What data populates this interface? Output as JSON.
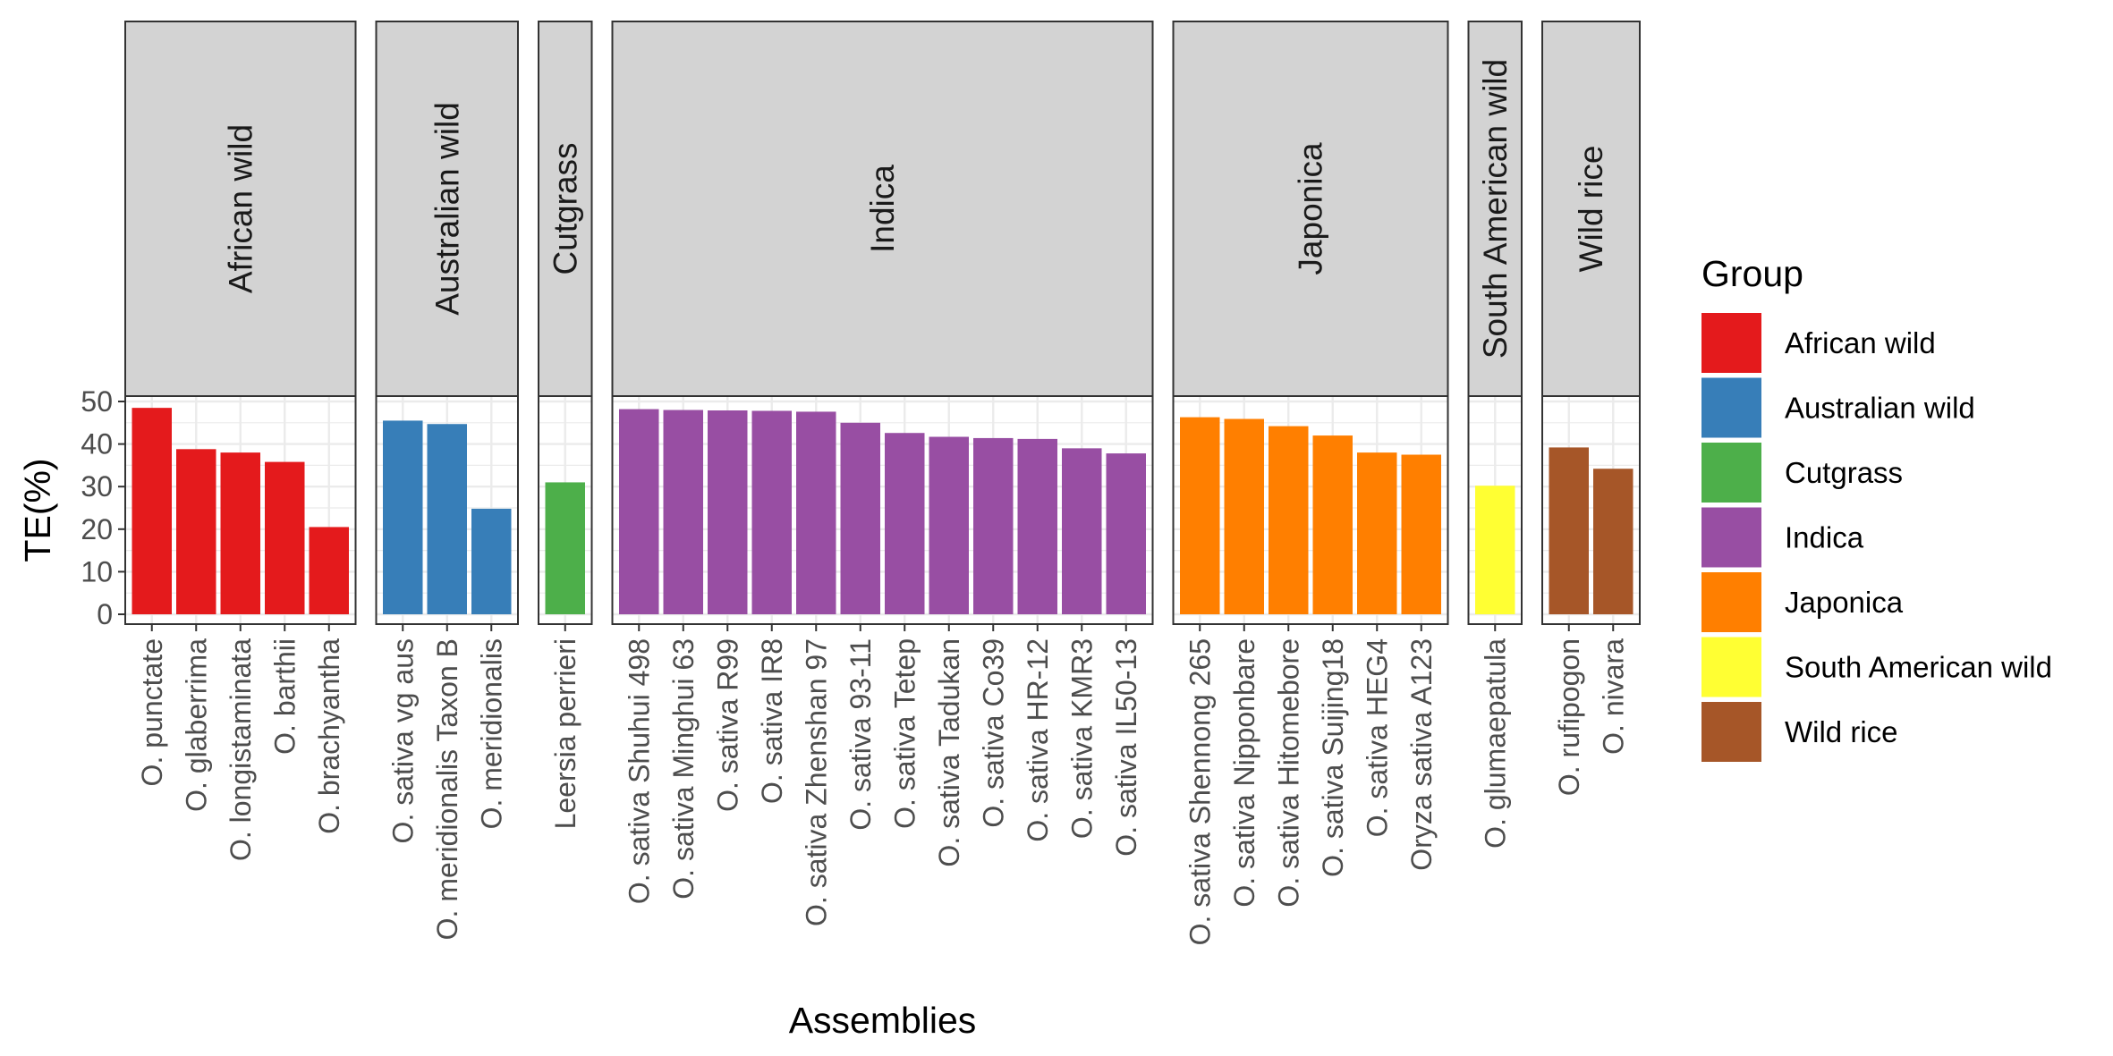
{
  "chart_data": {
    "type": "bar",
    "facet_by": "Group",
    "xlabel": "Assemblies",
    "ylabel": "TE(%)",
    "ylim": [
      0,
      50
    ],
    "y_ticks": [
      "0",
      "10",
      "20",
      "30",
      "40",
      "50"
    ],
    "grid": true,
    "legend_position": "right",
    "legend_title": "Group",
    "facets": [
      {
        "group": "African wild",
        "color": "#E41A1C",
        "categories": [
          "O. punctate",
          "O. glaberrima",
          "O. longistaminata",
          "O. barthii",
          "O. brachyantha"
        ],
        "values": [
          48.5,
          38.8,
          38.0,
          35.8,
          20.5
        ]
      },
      {
        "group": "Australian wild",
        "color": "#377EB8",
        "categories": [
          "O. sativa vg aus",
          "O. meridionalis Taxon B",
          "O. meridionalis"
        ],
        "values": [
          45.5,
          44.7,
          24.8
        ]
      },
      {
        "group": "Cutgrass",
        "color": "#4DAF4A",
        "categories": [
          "Leersia perrieri"
        ],
        "values": [
          31.0
        ]
      },
      {
        "group": "Indica",
        "color": "#984EA3",
        "categories": [
          "O. sativa Shuhui 498",
          "O. sativa Minghui 63",
          "O. sativa R99",
          "O. sativa IR8",
          "O. sativa Zhenshan 97",
          "O. sativa 93-11",
          "O. sativa Tetep",
          "O. sativa Tadukan",
          "O. sativa Co39",
          "O. sativa HR-12",
          "O. sativa KMR3",
          "O. sativa IL50-13"
        ],
        "values": [
          48.2,
          48.0,
          47.9,
          47.8,
          47.6,
          45.0,
          42.6,
          41.7,
          41.4,
          41.2,
          39.0,
          37.8
        ]
      },
      {
        "group": "Japonica",
        "color": "#FF7F00",
        "categories": [
          "O. sativa Shennong 265",
          "O. sativa Nipponbare",
          "O. sativa Hitomebore",
          "O. sativa Suijing18",
          "O. sativa HEG4",
          "Oryza sativa A123"
        ],
        "values": [
          46.3,
          45.9,
          44.2,
          42.0,
          38.0,
          37.5
        ]
      },
      {
        "group": "South American wild",
        "color": "#FFFF33",
        "categories": [
          "O. glumaepatula"
        ],
        "values": [
          30.2
        ]
      },
      {
        "group": "Wild rice",
        "color": "#A65628",
        "categories": [
          "O. rufipogon",
          "O. nivara"
        ],
        "values": [
          39.2,
          34.2
        ]
      }
    ],
    "legend": [
      {
        "label": "African wild",
        "color": "#E41A1C"
      },
      {
        "label": "Australian wild",
        "color": "#377EB8"
      },
      {
        "label": "Cutgrass",
        "color": "#4DAF4A"
      },
      {
        "label": "Indica",
        "color": "#984EA3"
      },
      {
        "label": "Japonica",
        "color": "#FF7F00"
      },
      {
        "label": "South American wild",
        "color": "#FFFF33"
      },
      {
        "label": "Wild rice",
        "color": "#A65628"
      }
    ]
  }
}
